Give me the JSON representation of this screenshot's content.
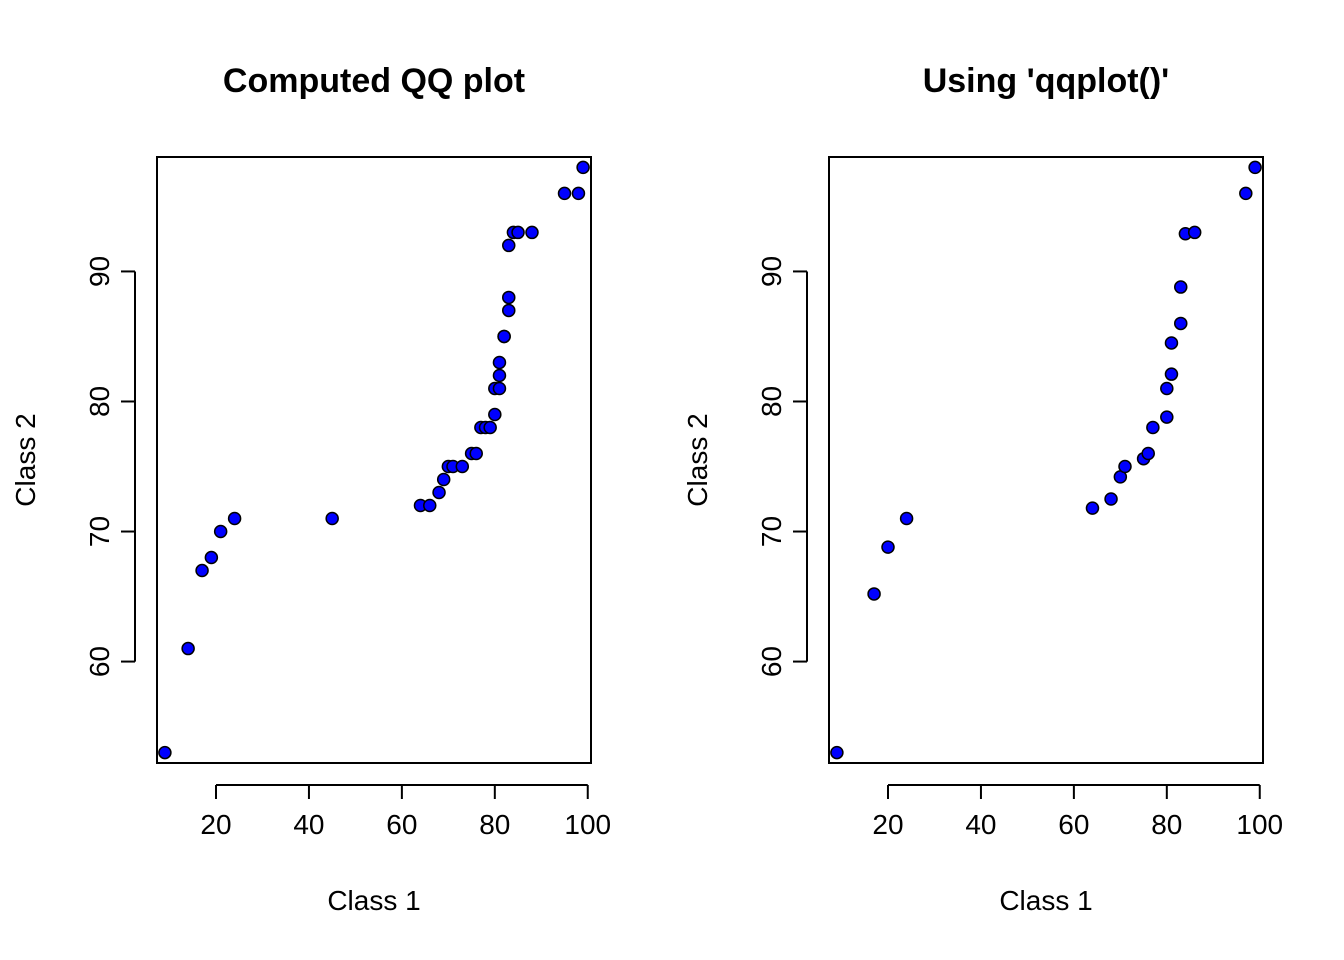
{
  "chart_data": [
    {
      "type": "scatter",
      "title": "Computed QQ plot",
      "xlabel": "Class 1",
      "ylabel": "Class 2",
      "xticks": [
        20,
        40,
        60,
        80,
        100
      ],
      "yticks": [
        60,
        70,
        80,
        90
      ],
      "xlim": [
        7.3,
        100.7
      ],
      "ylim": [
        52.2,
        98.8
      ],
      "point_color": "#0000ff",
      "series": [
        {
          "x": [
            9,
            14,
            17,
            19,
            21,
            24,
            45,
            64,
            66,
            68,
            69,
            70,
            71,
            73,
            75,
            76,
            77,
            78,
            79,
            80,
            80,
            81,
            81,
            81,
            82,
            82,
            83,
            83,
            83,
            84,
            85,
            88,
            95,
            98,
            99
          ],
          "y": [
            53,
            61,
            67,
            68,
            70,
            71,
            71,
            72,
            72,
            73,
            74,
            75,
            75,
            75,
            76,
            76,
            78,
            78,
            78,
            79,
            81,
            81,
            82,
            83,
            85,
            85,
            87,
            88,
            92,
            93,
            93,
            93,
            96,
            96,
            98
          ]
        }
      ]
    },
    {
      "type": "scatter",
      "title": "Using 'qqplot()'",
      "xlabel": "Class 1",
      "ylabel": "Class 2",
      "xticks": [
        20,
        40,
        60,
        80,
        100
      ],
      "yticks": [
        60,
        70,
        80,
        90
      ],
      "xlim": [
        7.3,
        100.7
      ],
      "ylim": [
        52.2,
        98.8
      ],
      "point_color": "#0000ff",
      "series": [
        {
          "x": [
            9,
            17,
            20,
            24,
            64,
            68,
            70,
            71,
            75,
            76,
            77,
            80,
            80,
            81,
            81,
            83,
            83,
            84,
            86,
            97,
            99
          ],
          "y": [
            53,
            65.2,
            68.8,
            71,
            71.8,
            72.5,
            74.2,
            75,
            75.6,
            76,
            78,
            78.8,
            81,
            82.1,
            84.5,
            86,
            88.8,
            92.9,
            93,
            96,
            98
          ]
        }
      ]
    }
  ]
}
